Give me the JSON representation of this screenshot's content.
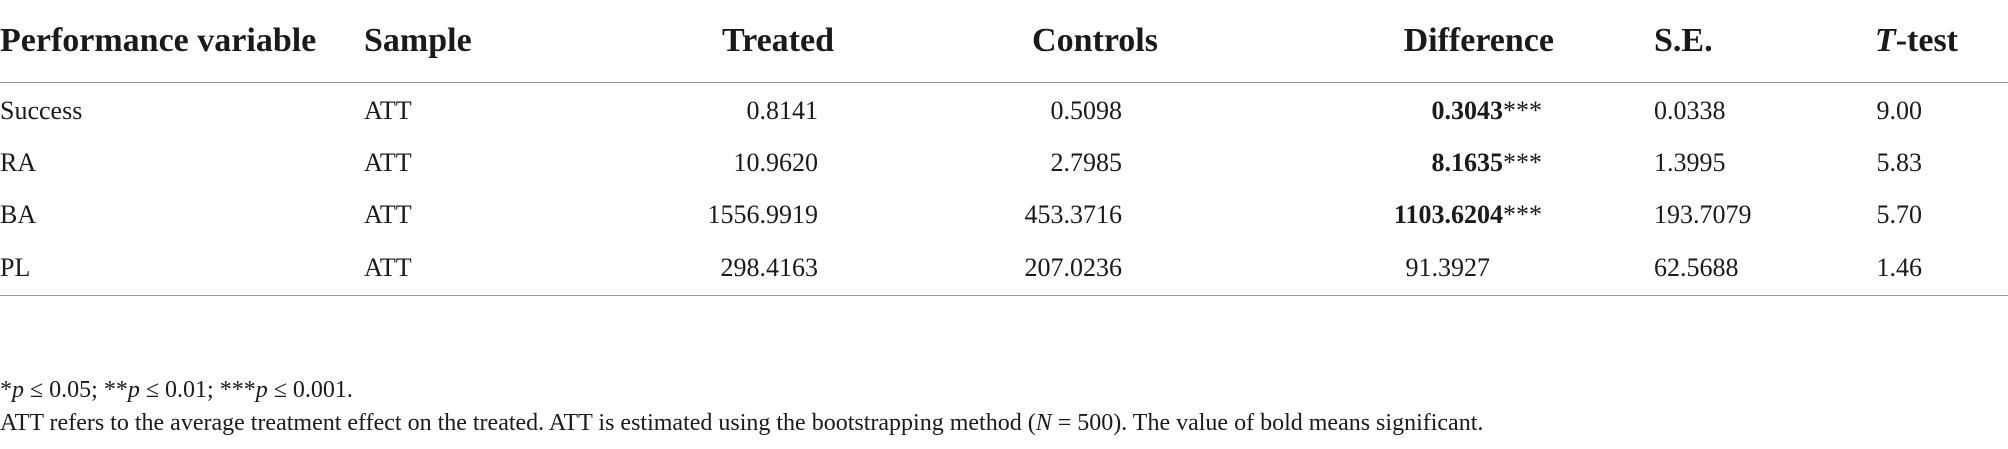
{
  "table": {
    "headers": {
      "variable": "Performance variable",
      "sample": "Sample",
      "treated": "Treated",
      "controls": "Controls",
      "difference": "Difference",
      "se": "S.E.",
      "ttest_italic": "T",
      "ttest_rest": "-test"
    },
    "rows": [
      {
        "variable": "Success",
        "sample": "ATT",
        "treated": "0.8141",
        "controls": "0.5098",
        "difference": "0.3043",
        "stars": "***",
        "se": "0.0338",
        "ttest": "9.00"
      },
      {
        "variable": "RA",
        "sample": "ATT",
        "treated": "10.9620",
        "controls": "2.7985",
        "difference": "8.1635",
        "stars": "***",
        "se": "1.3995",
        "ttest": "5.83"
      },
      {
        "variable": "BA",
        "sample": "ATT",
        "treated": "1556.9919",
        "controls": "453.3716",
        "difference": "1103.6204",
        "stars": "***",
        "se": "193.7079",
        "ttest": "5.70"
      },
      {
        "variable": "PL",
        "sample": "ATT",
        "treated": "298.4163",
        "controls": "207.0236",
        "difference": "91.3927",
        "stars": "",
        "se": "62.5688",
        "ttest": "1.46"
      }
    ]
  },
  "footnotes": {
    "sig": {
      "s1_pre": "*",
      "s1_p": "p",
      "s1_post": " ≤ 0.05;  ",
      "s2_pre": "**",
      "s2_p": "p",
      "s2_post": " ≤ 0.01;  ",
      "s3_pre": "***",
      "s3_p": "p",
      "s3_post": " ≤ 0.001."
    },
    "note": {
      "part1": "ATT refers to the average treatment effect on the treated. ATT is estimated using the bootstrapping method (",
      "n": "N",
      "part2": " = 500). The value of bold means significant."
    }
  }
}
